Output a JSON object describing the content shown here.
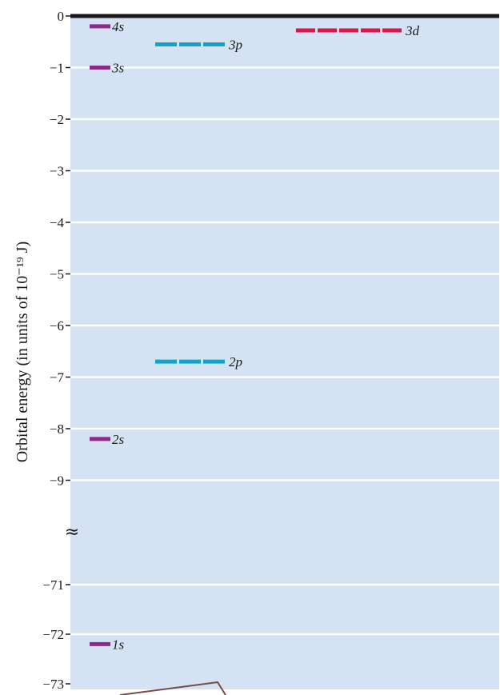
{
  "chart_data": {
    "type": "energy-level",
    "ylabel": "Orbital energy (in units of 10⁻¹⁹ J)",
    "break_symbol": "≈",
    "y_ticks_upper": [
      "0",
      "−1",
      "−2",
      "−3",
      "−4",
      "−5",
      "−6",
      "−7",
      "−8",
      "−9"
    ],
    "y_ticks_lower": [
      "−71",
      "−72",
      "−73"
    ],
    "y_upper_range": [
      -9,
      0
    ],
    "y_lower_range": [
      -73,
      -71
    ],
    "grid": true,
    "colors": {
      "background": "#d4e2f4",
      "grid": "#ffffff",
      "axis": "#1a1a1a",
      "s": "#8b2a8a",
      "p": "#12a4c6",
      "d": "#d6184e",
      "inset_line": "#7a4a45"
    },
    "levels": [
      {
        "label": "1s",
        "energy": -72.2,
        "column": "s",
        "degeneracy": 1
      },
      {
        "label": "2s",
        "energy": -8.2,
        "column": "s",
        "degeneracy": 1
      },
      {
        "label": "3s",
        "energy": -1.0,
        "column": "s",
        "degeneracy": 1
      },
      {
        "label": "4s",
        "energy": -0.2,
        "column": "s",
        "degeneracy": 1
      },
      {
        "label": "2p",
        "energy": -6.7,
        "column": "p",
        "degeneracy": 3
      },
      {
        "label": "3p",
        "energy": -0.55,
        "column": "p",
        "degeneracy": 3
      },
      {
        "label": "3d",
        "energy": -0.28,
        "column": "d",
        "degeneracy": 5
      }
    ]
  }
}
